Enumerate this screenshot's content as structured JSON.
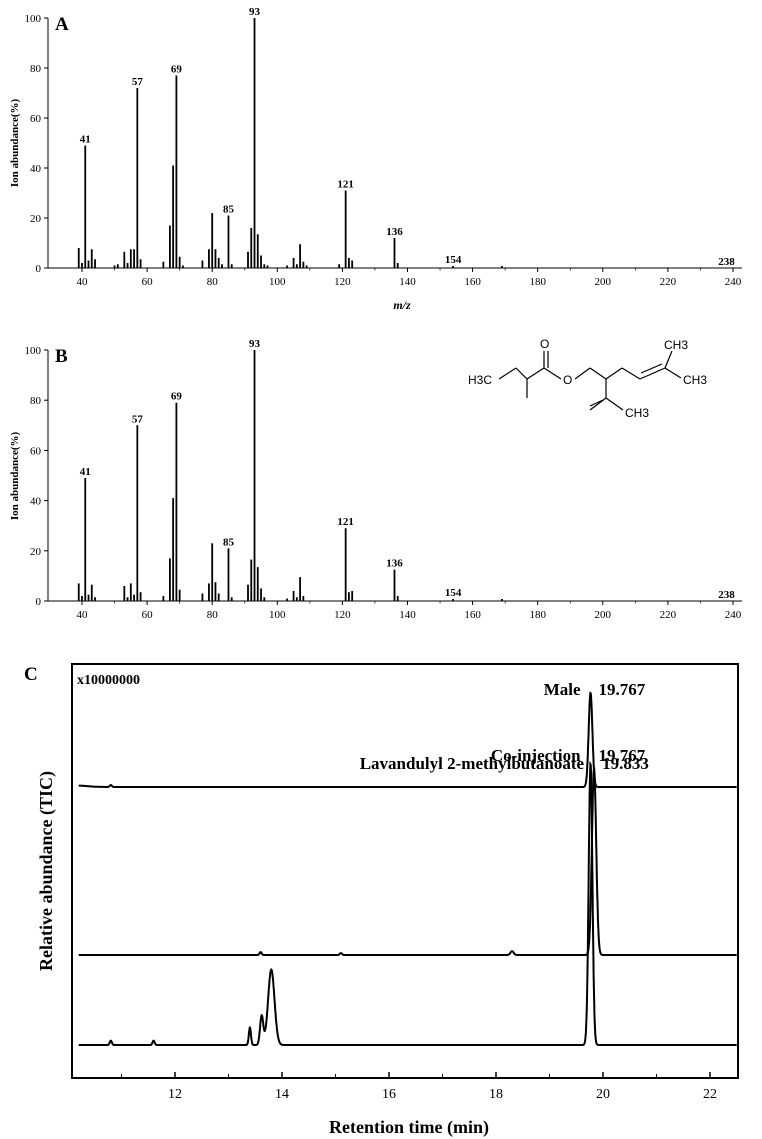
{
  "chart_data": [
    {
      "type": "bar",
      "panel": "A",
      "ylabel": "Ion abundance(%)",
      "xlabel": "m/z",
      "xlim": [
        30,
        242
      ],
      "ylim": [
        0,
        100
      ],
      "xticks": [
        40,
        60,
        80,
        100,
        120,
        140,
        160,
        180,
        200,
        220,
        240
      ],
      "yticks": [
        0,
        20,
        40,
        60,
        80,
        100
      ],
      "peaks": [
        {
          "mz": 39,
          "y": 8
        },
        {
          "mz": 40,
          "y": 2
        },
        {
          "mz": 41,
          "y": 49
        },
        {
          "mz": 42,
          "y": 3
        },
        {
          "mz": 43,
          "y": 7.5
        },
        {
          "mz": 44,
          "y": 3.5
        },
        {
          "mz": 50,
          "y": 1
        },
        {
          "mz": 51,
          "y": 1.5
        },
        {
          "mz": 53,
          "y": 6.5
        },
        {
          "mz": 54,
          "y": 2
        },
        {
          "mz": 55,
          "y": 7.5
        },
        {
          "mz": 56,
          "y": 7.5
        },
        {
          "mz": 57,
          "y": 72
        },
        {
          "mz": 58,
          "y": 3.5
        },
        {
          "mz": 65,
          "y": 2.5
        },
        {
          "mz": 67,
          "y": 17
        },
        {
          "mz": 68,
          "y": 41
        },
        {
          "mz": 69,
          "y": 77
        },
        {
          "mz": 70,
          "y": 4.5
        },
        {
          "mz": 71,
          "y": 1
        },
        {
          "mz": 77,
          "y": 3
        },
        {
          "mz": 79,
          "y": 7.5
        },
        {
          "mz": 80,
          "y": 22
        },
        {
          "mz": 81,
          "y": 7.5
        },
        {
          "mz": 82,
          "y": 4
        },
        {
          "mz": 83,
          "y": 1.5
        },
        {
          "mz": 85,
          "y": 21
        },
        {
          "mz": 86,
          "y": 1.5
        },
        {
          "mz": 91,
          "y": 6.5
        },
        {
          "mz": 92,
          "y": 16
        },
        {
          "mz": 93,
          "y": 100
        },
        {
          "mz": 94,
          "y": 13.5
        },
        {
          "mz": 95,
          "y": 5
        },
        {
          "mz": 96,
          "y": 1.5
        },
        {
          "mz": 97,
          "y": 1
        },
        {
          "mz": 103,
          "y": 1
        },
        {
          "mz": 105,
          "y": 4
        },
        {
          "mz": 106,
          "y": 1.5
        },
        {
          "mz": 107,
          "y": 9.5
        },
        {
          "mz": 108,
          "y": 2.5
        },
        {
          "mz": 109,
          "y": 1
        },
        {
          "mz": 119,
          "y": 1.5
        },
        {
          "mz": 121,
          "y": 31
        },
        {
          "mz": 122,
          "y": 4
        },
        {
          "mz": 123,
          "y": 3
        },
        {
          "mz": 136,
          "y": 12
        },
        {
          "mz": 137,
          "y": 2
        },
        {
          "mz": 154,
          "y": 0.8
        },
        {
          "mz": 169,
          "y": 0.8
        }
      ],
      "labels": [
        {
          "mz": 41,
          "text": "41"
        },
        {
          "mz": 57,
          "text": "57"
        },
        {
          "mz": 69,
          "text": "69"
        },
        {
          "mz": 85,
          "text": "85"
        },
        {
          "mz": 93,
          "text": "93"
        },
        {
          "mz": 121,
          "text": "121"
        },
        {
          "mz": 136,
          "text": "136"
        },
        {
          "mz": 154,
          "text": "154"
        },
        {
          "mz": 238,
          "text": "238"
        }
      ]
    },
    {
      "type": "bar",
      "panel": "B",
      "ylabel": "Ion abundance(%)",
      "xlabel": "",
      "xlim": [
        30,
        242
      ],
      "ylim": [
        0,
        100
      ],
      "xticks": [
        40,
        60,
        80,
        100,
        120,
        140,
        160,
        180,
        200,
        220,
        240
      ],
      "yticks": [
        0,
        20,
        40,
        60,
        80,
        100
      ],
      "peaks": [
        {
          "mz": 39,
          "y": 7
        },
        {
          "mz": 40,
          "y": 2
        },
        {
          "mz": 41,
          "y": 49
        },
        {
          "mz": 42,
          "y": 2.5
        },
        {
          "mz": 43,
          "y": 6.5
        },
        {
          "mz": 44,
          "y": 1.5
        },
        {
          "mz": 53,
          "y": 6
        },
        {
          "mz": 54,
          "y": 1.5
        },
        {
          "mz": 55,
          "y": 7
        },
        {
          "mz": 56,
          "y": 2.5
        },
        {
          "mz": 57,
          "y": 70
        },
        {
          "mz": 58,
          "y": 3.5
        },
        {
          "mz": 65,
          "y": 2
        },
        {
          "mz": 67,
          "y": 17
        },
        {
          "mz": 68,
          "y": 41
        },
        {
          "mz": 69,
          "y": 79
        },
        {
          "mz": 70,
          "y": 4.5
        },
        {
          "mz": 77,
          "y": 3
        },
        {
          "mz": 79,
          "y": 7
        },
        {
          "mz": 80,
          "y": 23
        },
        {
          "mz": 81,
          "y": 7.5
        },
        {
          "mz": 82,
          "y": 3
        },
        {
          "mz": 85,
          "y": 21
        },
        {
          "mz": 86,
          "y": 1.5
        },
        {
          "mz": 91,
          "y": 6.5
        },
        {
          "mz": 92,
          "y": 16.5
        },
        {
          "mz": 93,
          "y": 100
        },
        {
          "mz": 94,
          "y": 13.5
        },
        {
          "mz": 95,
          "y": 5
        },
        {
          "mz": 96,
          "y": 1.5
        },
        {
          "mz": 103,
          "y": 1
        },
        {
          "mz": 105,
          "y": 4
        },
        {
          "mz": 106,
          "y": 1.5
        },
        {
          "mz": 107,
          "y": 9.5
        },
        {
          "mz": 108,
          "y": 2
        },
        {
          "mz": 121,
          "y": 29
        },
        {
          "mz": 122,
          "y": 3.5
        },
        {
          "mz": 123,
          "y": 4
        },
        {
          "mz": 136,
          "y": 12.5
        },
        {
          "mz": 137,
          "y": 2
        },
        {
          "mz": 154,
          "y": 0.8
        },
        {
          "mz": 169,
          "y": 0.8
        }
      ],
      "labels": [
        {
          "mz": 41,
          "text": "41"
        },
        {
          "mz": 57,
          "text": "57"
        },
        {
          "mz": 69,
          "text": "69"
        },
        {
          "mz": 85,
          "text": "85"
        },
        {
          "mz": 93,
          "text": "93"
        },
        {
          "mz": 121,
          "text": "121"
        },
        {
          "mz": 136,
          "text": "136"
        },
        {
          "mz": 154,
          "text": "154"
        },
        {
          "mz": 238,
          "text": "238"
        }
      ],
      "structure_atoms": [
        "H3C",
        "O",
        "O",
        "CH3",
        "CH3",
        "CH3"
      ]
    },
    {
      "type": "line",
      "panel": "C",
      "ylabel": "Relative abundance (TIC)",
      "xlabel": "Retention time (min)",
      "scale_label": "x10000000",
      "xlim": [
        10.2,
        22.6
      ],
      "xticks": [
        12,
        14,
        16,
        18,
        20,
        22
      ],
      "series": [
        {
          "label": "Male",
          "rt_label": "19.767",
          "peaks": [
            {
              "rt": 19.767,
              "h": 0.96,
              "w": 0.035
            },
            {
              "rt": 10.15,
              "h": 0.015,
              "w": 0.2
            },
            {
              "rt": 10.8,
              "h": 0.02,
              "w": 0.02
            }
          ]
        },
        {
          "label": "Lavandulyl 2-methylbutanoate",
          "rt_label": "19.833",
          "peaks": [
            {
              "rt": 19.833,
              "h": 0.97,
              "w": 0.04
            },
            {
              "rt": 13.6,
              "h": 0.015,
              "w": 0.02
            },
            {
              "rt": 15.1,
              "h": 0.01,
              "w": 0.02
            },
            {
              "rt": 18.3,
              "h": 0.02,
              "w": 0.03
            }
          ]
        },
        {
          "label": "Co-injection",
          "rt_label": "19.767",
          "peaks": [
            {
              "rt": 19.767,
              "h": 0.97,
              "w": 0.035
            },
            {
              "rt": 13.8,
              "h": 0.26,
              "w": 0.06
            },
            {
              "rt": 13.62,
              "h": 0.1,
              "w": 0.03
            },
            {
              "rt": 13.4,
              "h": 0.06,
              "w": 0.02
            },
            {
              "rt": 11.6,
              "h": 0.015,
              "w": 0.02
            },
            {
              "rt": 10.8,
              "h": 0.015,
              "w": 0.02
            }
          ]
        }
      ]
    }
  ]
}
